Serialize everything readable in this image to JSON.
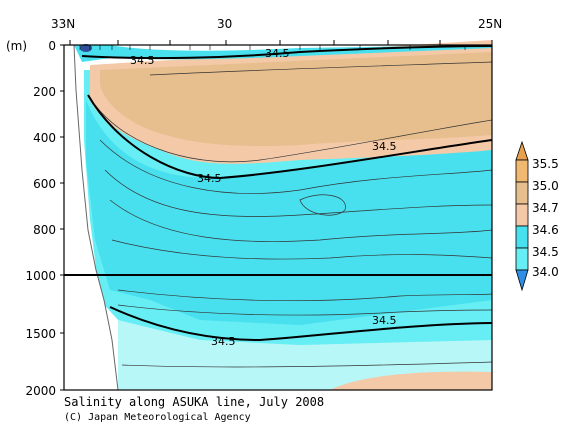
{
  "chart_data": {
    "type": "contour",
    "title": "Salinity along ASUKA line, July 2008",
    "credit": "(C) Japan Meteorological Agency",
    "ylabel": "(m)",
    "x_ticks": [
      "33N",
      "30",
      "25N"
    ],
    "y_ticks": [
      "0",
      "200",
      "400",
      "600",
      "800",
      "1000",
      "1500",
      "2000"
    ],
    "contour_labels": [
      "34.5",
      "34.5",
      "34.5",
      "34.5",
      "34.5"
    ],
    "colorbar": {
      "labels": [
        "35.5",
        "35.0",
        "34.7",
        "34.6",
        "34.5",
        "34.0"
      ],
      "colors": [
        "#e8a04c",
        "#f0b870",
        "#e7bf8e",
        "#f3c9a8",
        "#48e0ee",
        "#66eef4",
        "#2f8fe6"
      ]
    },
    "colors": {
      "freshest": "#b8f7f8",
      "low": "#66eef4",
      "mid": "#48e0ee",
      "salty": "#f3c9a8",
      "saltier": "#e7bf8e",
      "saltiest": "#f0b870",
      "core": "#2f4f9a"
    }
  }
}
